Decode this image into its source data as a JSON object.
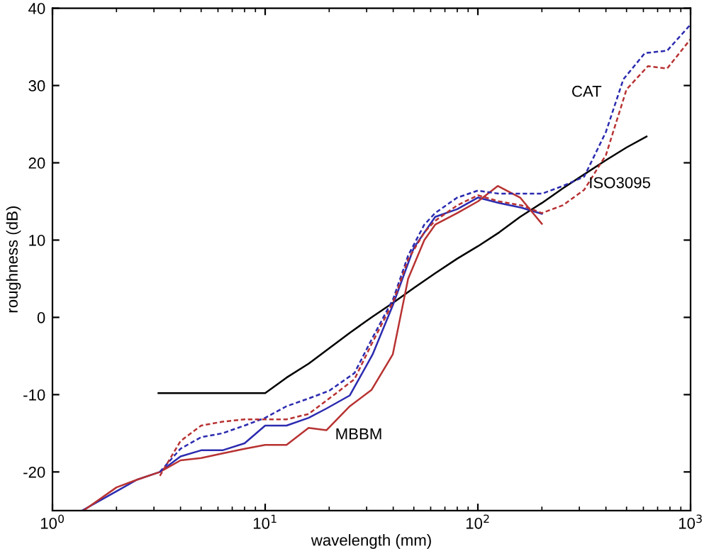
{
  "chart_data": {
    "type": "line",
    "xlabel": "wavelength (mm)",
    "ylabel": "roughness (dB)",
    "log": "x",
    "xlim": [
      1,
      1000
    ],
    "xticks": [
      {
        "value": 1,
        "label": "10$^{0}$"
      },
      {
        "value": 10,
        "label": "10$^{1}$"
      },
      {
        "value": 100,
        "label": "10$^{2}$"
      },
      {
        "value": 1000,
        "label": "10$^{3}$"
      }
    ],
    "ylim": [
      -25,
      40
    ],
    "yticks": [
      -20,
      -10,
      0,
      10,
      20,
      30,
      40
    ],
    "grid": false,
    "legend": false,
    "series": [
      {
        "color": "#000000",
        "line_style": "solid",
        "x": [
          3.15,
          10,
          12.6,
          16,
          20,
          25,
          31.6,
          40,
          50,
          63,
          80,
          100,
          126,
          158,
          200,
          251,
          316,
          398,
          501,
          621
        ],
        "values": [
          -9.8,
          -9.8,
          -7.8,
          -6,
          -4,
          -2,
          0,
          1.9,
          3.8,
          5.7,
          7.6,
          9.2,
          11,
          13,
          14.8,
          16.7,
          18.5,
          20.3,
          22,
          23.4
        ]
      },
      {
        "color": "#2b2bb0",
        "line_style": "solid",
        "x": [
          1.38,
          1.6,
          2,
          2.5,
          3.2,
          4,
          5,
          6.3,
          8,
          10,
          12.6,
          16,
          19.4,
          25,
          32,
          40,
          46,
          50,
          63,
          80,
          100,
          126,
          160,
          200
        ],
        "values": [
          -25,
          -24,
          -22.5,
          -21,
          -20,
          -18,
          -17.2,
          -17.2,
          -16.3,
          -14,
          -14,
          -13,
          -11.8,
          -10.1,
          -4.8,
          1.7,
          6.3,
          9,
          13,
          14,
          15.5,
          14.8,
          14.2,
          13.4
        ]
      },
      {
        "color": "#b83232",
        "line_style": "solid",
        "x": [
          1.4,
          2,
          2.5,
          3.2,
          4,
          5,
          6.3,
          8,
          10,
          12.6,
          16,
          19.4,
          25,
          31.6,
          39.8,
          47,
          56,
          63,
          80,
          100,
          124,
          158,
          200
        ],
        "values": [
          -25,
          -22,
          -21,
          -20,
          -18.5,
          -18.2,
          -17.6,
          -17,
          -16.5,
          -16.5,
          -14.3,
          -14.6,
          -11.5,
          -9.4,
          -4.8,
          5,
          10,
          12,
          13.5,
          15,
          17,
          15.5,
          12.1
        ]
      },
      {
        "color": "#2b2bb0",
        "line_style": "dashed",
        "x": [
          3.2,
          4,
          5,
          6.3,
          8,
          10,
          12.6,
          16,
          20,
          26.3,
          31.6,
          40,
          47,
          56,
          63,
          80,
          100,
          126,
          160,
          200,
          251,
          316,
          400,
          483,
          610,
          776,
          1000
        ],
        "values": [
          -20,
          -17,
          -15.5,
          -15,
          -14,
          -13,
          -11.5,
          -10.5,
          -9.5,
          -7.2,
          -2.9,
          2.4,
          8,
          12,
          13.5,
          15.5,
          16.4,
          16,
          16,
          16,
          17,
          18.2,
          24,
          30.8,
          34.2,
          34.5,
          37.9
        ]
      },
      {
        "color": "#b83232",
        "line_style": "dashed",
        "x": [
          3.2,
          4,
          5,
          6.3,
          8,
          10,
          12.6,
          16,
          20,
          26.3,
          31.6,
          40,
          47,
          56,
          63,
          80,
          100,
          126,
          160,
          200,
          251,
          316,
          400,
          500,
          630,
          776,
          1000
        ],
        "values": [
          -20.5,
          -16,
          -14,
          -13.5,
          -13.2,
          -13.2,
          -13.2,
          -12.5,
          -10.5,
          -8,
          -3.5,
          2,
          7.5,
          11,
          12.5,
          14.5,
          15.8,
          15,
          14.5,
          13.5,
          14.5,
          16.5,
          21,
          29.5,
          32.5,
          32.2,
          36
        ]
      }
    ],
    "annotations": [
      "CAT",
      "ISO3095",
      "MBBM"
    ]
  }
}
